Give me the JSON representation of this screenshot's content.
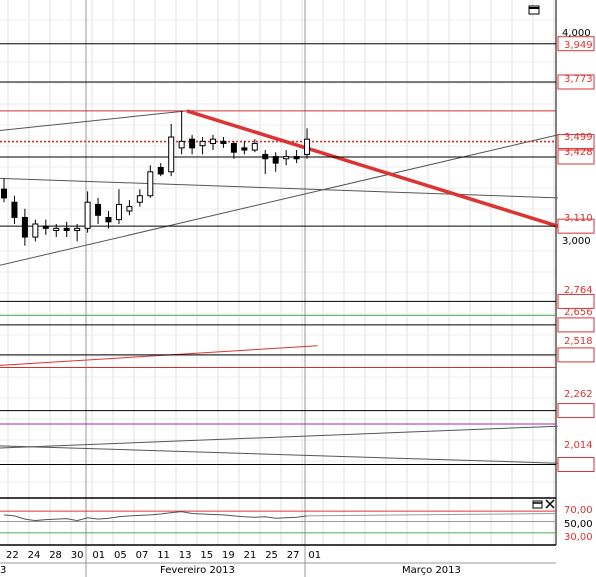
{
  "chart_data": {
    "type": "candlestick",
    "main_panel": {
      "y_axis": {
        "ylim": [
          1.86,
          4.15
        ],
        "tick_labels": [
          "4,000",
          "3,000"
        ],
        "price_tags": [
          "3,949",
          "3,773",
          "3,499",
          "3,428",
          "3,110",
          "2,764",
          "2,656",
          "2,518",
          "2,262",
          "2,014"
        ]
      },
      "candles": [
        {
          "x": "18/01",
          "o": 3.28,
          "h": 3.33,
          "l": 3.22,
          "c": 3.24
        },
        {
          "x": "21/01",
          "o": 3.22,
          "h": 3.25,
          "l": 3.12,
          "c": 3.15
        },
        {
          "x": "22/01",
          "o": 3.15,
          "h": 3.19,
          "l": 3.02,
          "c": 3.06
        },
        {
          "x": "23/01",
          "o": 3.06,
          "h": 3.14,
          "l": 3.04,
          "c": 3.12
        },
        {
          "x": "24/01",
          "o": 3.11,
          "h": 3.14,
          "l": 3.07,
          "c": 3.1
        },
        {
          "x": "28/01",
          "o": 3.09,
          "h": 3.12,
          "l": 3.06,
          "c": 3.1
        },
        {
          "x": "29/01",
          "o": 3.1,
          "h": 3.13,
          "l": 3.06,
          "c": 3.09
        },
        {
          "x": "30/01",
          "o": 3.09,
          "h": 3.12,
          "l": 3.04,
          "c": 3.1
        },
        {
          "x": "31/01",
          "o": 3.1,
          "h": 3.27,
          "l": 3.08,
          "c": 3.22
        },
        {
          "x": "01/02",
          "o": 3.21,
          "h": 3.24,
          "l": 3.12,
          "c": 3.16
        },
        {
          "x": "04/02",
          "o": 3.15,
          "h": 3.18,
          "l": 3.1,
          "c": 3.13
        },
        {
          "x": "05/02",
          "o": 3.14,
          "h": 3.28,
          "l": 3.12,
          "c": 3.21
        },
        {
          "x": "06/02",
          "o": 3.18,
          "h": 3.23,
          "l": 3.16,
          "c": 3.2
        },
        {
          "x": "07/02",
          "o": 3.22,
          "h": 3.28,
          "l": 3.2,
          "c": 3.25
        },
        {
          "x": "08/02",
          "o": 3.25,
          "h": 3.39,
          "l": 3.24,
          "c": 3.36
        },
        {
          "x": "11/02",
          "o": 3.38,
          "h": 3.4,
          "l": 3.34,
          "c": 3.35
        },
        {
          "x": "12/02",
          "o": 3.36,
          "h": 3.58,
          "l": 3.34,
          "c": 3.52
        },
        {
          "x": "13/02",
          "o": 3.47,
          "h": 3.64,
          "l": 3.44,
          "c": 3.5
        },
        {
          "x": "14/02",
          "o": 3.51,
          "h": 3.53,
          "l": 3.44,
          "c": 3.47
        },
        {
          "x": "15/02",
          "o": 3.48,
          "h": 3.52,
          "l": 3.44,
          "c": 3.5
        },
        {
          "x": "18/02",
          "o": 3.49,
          "h": 3.53,
          "l": 3.46,
          "c": 3.51
        },
        {
          "x": "19/02",
          "o": 3.5,
          "h": 3.52,
          "l": 3.47,
          "c": 3.49
        },
        {
          "x": "20/02",
          "o": 3.49,
          "h": 3.5,
          "l": 3.42,
          "c": 3.45
        },
        {
          "x": "21/02",
          "o": 3.47,
          "h": 3.5,
          "l": 3.44,
          "c": 3.46
        },
        {
          "x": "22/02",
          "o": 3.46,
          "h": 3.51,
          "l": 3.45,
          "c": 3.49
        },
        {
          "x": "25/02",
          "o": 3.44,
          "h": 3.46,
          "l": 3.35,
          "c": 3.42
        },
        {
          "x": "26/02",
          "o": 3.43,
          "h": 3.45,
          "l": 3.36,
          "c": 3.4
        },
        {
          "x": "27/02",
          "o": 3.42,
          "h": 3.46,
          "l": 3.39,
          "c": 3.43
        },
        {
          "x": "28/02",
          "o": 3.43,
          "h": 3.46,
          "l": 3.4,
          "c": 3.42
        },
        {
          "x": "01/03",
          "o": 3.44,
          "h": 3.56,
          "l": 3.42,
          "c": 3.51
        }
      ],
      "horizontal_levels": [
        {
          "value": 3.949,
          "color": "#000000",
          "tag": true
        },
        {
          "value": 3.773,
          "color": "#000000",
          "tag": true
        },
        {
          "value": 3.64,
          "color": "#d32f2f",
          "tag": false
        },
        {
          "value": 3.499,
          "color": "#d32f2f",
          "tag": true,
          "dotted": true
        },
        {
          "value": 3.428,
          "color": "#000000",
          "tag": true
        },
        {
          "value": 3.11,
          "color": "#000000",
          "tag": true
        },
        {
          "value": 2.764,
          "color": "#000000",
          "tag": true
        },
        {
          "value": 2.7,
          "color": "#4caf50",
          "tag": false
        },
        {
          "value": 2.656,
          "color": "#000000",
          "tag": true
        },
        {
          "value": 2.518,
          "color": "#000000",
          "tag": true
        },
        {
          "value": 2.46,
          "color": "#d32f2f",
          "tag": false
        },
        {
          "value": 2.262,
          "color": "#000000",
          "tag": true
        },
        {
          "value": 2.2,
          "color": "#9c27b0",
          "tag": false
        },
        {
          "value": 2.014,
          "color": "#000000",
          "tag": true
        }
      ]
    },
    "indicator_panel": {
      "tick_labels": [
        "70,00",
        "50,00",
        "30,00"
      ],
      "values": [
        64,
        62,
        55,
        52,
        54,
        55,
        56,
        52,
        58,
        55,
        57,
        60,
        62,
        63,
        64,
        66,
        69,
        71,
        67,
        66,
        65,
        64,
        62,
        60,
        59,
        60,
        57,
        58,
        59,
        62
      ]
    },
    "x_axis": {
      "day_labels": [
        "22",
        "24",
        "28",
        "30",
        "01",
        "05",
        "07",
        "11",
        "13",
        "15",
        "19",
        "21",
        "25",
        "27",
        "01"
      ],
      "month_labels": [
        "Fevereiro 2013",
        "Março 2013"
      ],
      "edge_label": "3"
    }
  }
}
